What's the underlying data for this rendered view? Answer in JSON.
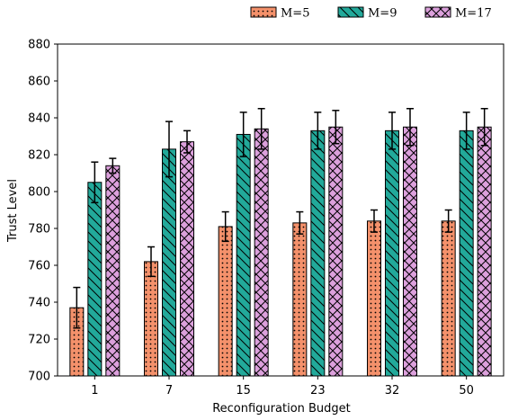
{
  "chart_data": {
    "type": "bar",
    "xlabel": "Reconfiguration Budget",
    "ylabel": "Trust Level",
    "categories": [
      "1",
      "7",
      "15",
      "23",
      "32",
      "50"
    ],
    "ylim": [
      700,
      880
    ],
    "yticks": [
      700,
      720,
      740,
      760,
      780,
      800,
      820,
      840,
      860,
      880
    ],
    "grid": false,
    "legend_position": "top-right, above plot",
    "series": [
      {
        "name": "M=5",
        "color": "#f4916b",
        "hatch": "dots",
        "values": [
          737,
          762,
          781,
          783,
          784,
          784
        ],
        "errors": [
          11,
          8,
          8,
          6,
          6,
          6
        ]
      },
      {
        "name": "M=9",
        "color": "#22a99a",
        "hatch": "diagonal",
        "values": [
          805,
          823,
          831,
          833,
          833,
          833
        ],
        "errors": [
          11,
          15,
          12,
          10,
          10,
          10
        ]
      },
      {
        "name": "M=17",
        "color": "#dca0dc",
        "hatch": "crosshatch",
        "values": [
          814,
          827,
          834,
          835,
          835,
          835
        ],
        "errors": [
          4,
          6,
          11,
          9,
          10,
          10
        ]
      }
    ]
  }
}
